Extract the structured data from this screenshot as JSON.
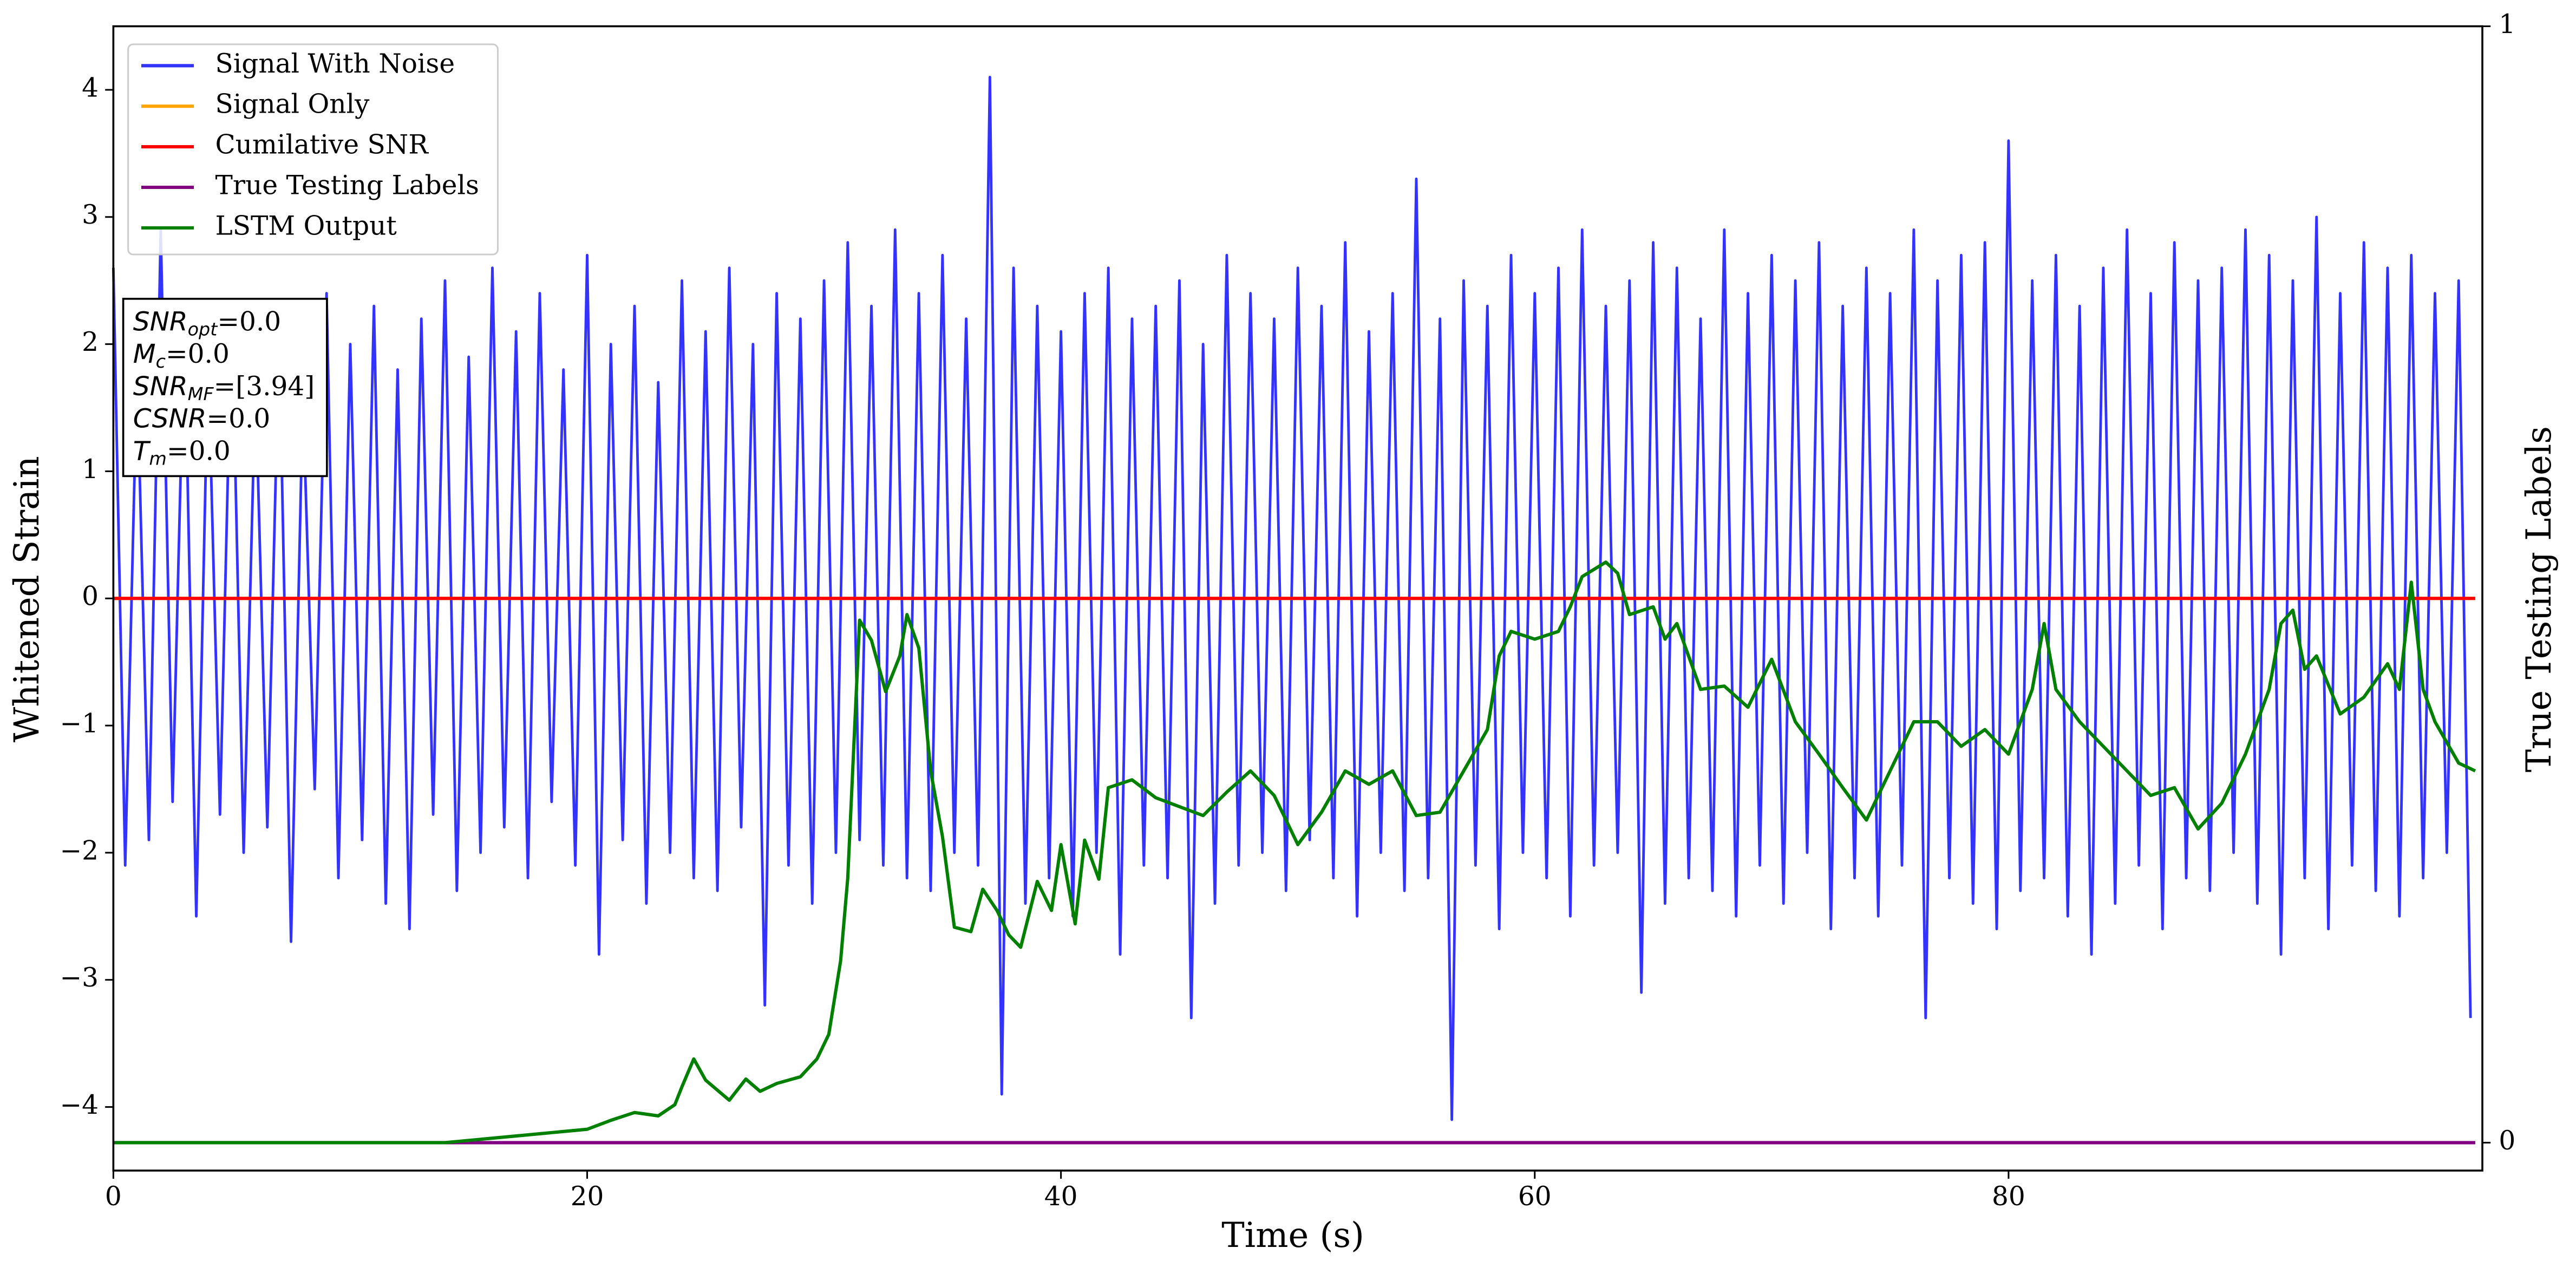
{
  "chart_data": {
    "type": "line",
    "xlabel": "Time (s)",
    "ylabel": "Whitened Strain",
    "y2label": "True Testing Labels",
    "xlim": [
      0,
      100
    ],
    "xticks": [
      0,
      20,
      40,
      60,
      80
    ],
    "ylim": [
      -4.5,
      4.5
    ],
    "yticks": [
      {
        "value": -4,
        "label": "−4"
      },
      {
        "value": -3,
        "label": "−3"
      },
      {
        "value": -2,
        "label": "−2"
      },
      {
        "value": -1,
        "label": "−1"
      },
      0,
      1,
      2,
      3,
      4
    ],
    "y2lim": [
      -0.025,
      1.0
    ],
    "y2ticks": [
      0,
      1
    ],
    "legend": "upper left",
    "series": [
      {
        "name": "Signal With Noise",
        "color": "#3333ff",
        "axis": "y",
        "x": [
          0,
          0.5,
          1,
          1.5,
          2,
          2.5,
          3,
          3.5,
          4,
          4.5,
          5,
          5.5,
          6,
          6.5,
          7,
          7.5,
          8,
          8.5,
          9,
          9.5,
          10,
          10.5,
          11,
          11.5,
          12,
          12.5,
          13,
          13.5,
          14,
          14.5,
          15,
          15.5,
          16,
          16.5,
          17,
          17.5,
          18,
          18.5,
          19,
          19.5,
          20,
          20.5,
          21,
          21.5,
          22,
          22.5,
          23,
          23.5,
          24,
          24.5,
          25,
          25.5,
          26,
          26.5,
          27,
          27.5,
          28,
          28.5,
          29,
          29.5,
          30,
          30.5,
          31,
          31.5,
          32,
          32.5,
          33,
          33.5,
          34,
          34.5,
          35,
          35.5,
          36,
          36.5,
          37,
          37.5,
          38,
          38.5,
          39,
          39.5,
          40,
          40.5,
          41,
          41.5,
          42,
          42.5,
          43,
          43.5,
          44,
          44.5,
          45,
          45.5,
          46,
          46.5,
          47,
          47.5,
          48,
          48.5,
          49,
          49.5,
          50,
          50.5,
          51,
          51.5,
          52,
          52.5,
          53,
          53.5,
          54,
          54.5,
          55,
          55.5,
          56,
          56.5,
          57,
          57.5,
          58,
          58.5,
          59,
          59.5,
          60,
          60.5,
          61,
          61.5,
          62,
          62.5,
          63,
          63.5,
          64,
          64.5,
          65,
          65.5,
          66,
          66.5,
          67,
          67.5,
          68,
          68.5,
          69,
          69.5,
          70,
          70.5,
          71,
          71.5,
          72,
          72.5,
          73,
          73.5,
          74,
          74.5,
          75,
          75.5,
          76,
          76.5,
          77,
          77.5,
          78,
          78.5,
          79,
          79.5,
          80,
          80.5,
          81,
          81.5,
          82,
          82.5,
          83,
          83.5,
          84,
          84.5,
          85,
          85.5,
          86,
          86.5,
          87,
          87.5,
          88,
          88.5,
          89,
          89.5,
          90,
          90.5,
          91,
          91.5,
          92,
          92.5,
          93,
          93.5,
          94,
          94.5,
          95,
          95.5,
          96,
          96.5,
          97,
          97.5,
          98,
          98.5,
          99,
          99.5
        ],
        "values": [
          2.6,
          -2.1,
          1.8,
          -1.9,
          2.9,
          -1.6,
          2.2,
          -2.5,
          1.9,
          -1.7,
          2.3,
          -2.0,
          1.7,
          -1.8,
          2.1,
          -2.7,
          1.6,
          -1.5,
          2.4,
          -2.2,
          2.0,
          -1.9,
          2.3,
          -2.4,
          1.8,
          -2.6,
          2.2,
          -1.7,
          2.5,
          -2.3,
          1.9,
          -2.0,
          2.6,
          -1.8,
          2.1,
          -2.2,
          2.4,
          -1.6,
          1.8,
          -2.1,
          2.7,
          -2.8,
          2.0,
          -1.9,
          2.3,
          -2.4,
          1.7,
          -2.0,
          2.5,
          -2.2,
          2.1,
          -2.3,
          2.6,
          -1.8,
          2.0,
          -3.2,
          2.4,
          -2.1,
          2.2,
          -2.4,
          2.5,
          -2.0,
          2.8,
          -1.9,
          2.3,
          -2.1,
          2.9,
          -2.2,
          2.4,
          -2.3,
          2.7,
          -2.0,
          2.2,
          -2.1,
          4.1,
          -3.9,
          2.6,
          -2.4,
          2.3,
          -2.2,
          2.1,
          -2.5,
          2.4,
          -2.0,
          2.6,
          -2.8,
          2.2,
          -2.1,
          2.3,
          -2.2,
          2.5,
          -3.3,
          2.0,
          -2.4,
          2.7,
          -2.1,
          2.4,
          -2.0,
          2.2,
          -2.3,
          2.6,
          -1.9,
          2.3,
          -2.2,
          2.8,
          -2.5,
          2.1,
          -2.0,
          2.4,
          -2.3,
          3.3,
          -2.2,
          2.2,
          -4.1,
          2.5,
          -2.1,
          2.3,
          -2.6,
          2.7,
          -2.0,
          2.4,
          -2.2,
          2.6,
          -2.5,
          2.9,
          -2.1,
          2.3,
          -2.0,
          2.5,
          -3.1,
          2.8,
          -2.4,
          2.6,
          -2.2,
          2.2,
          -2.3,
          2.9,
          -2.5,
          2.4,
          -2.1,
          2.7,
          -2.4,
          2.5,
          -2.0,
          2.8,
          -2.6,
          2.3,
          -2.2,
          2.6,
          -2.5,
          2.4,
          -2.1,
          2.9,
          -3.3,
          2.5,
          -2.2,
          2.7,
          -2.4,
          2.8,
          -2.6,
          3.6,
          -2.3,
          2.5,
          -2.2,
          2.7,
          -2.5,
          2.3,
          -2.8,
          2.6,
          -2.4,
          2.9,
          -2.1,
          2.4,
          -2.6,
          2.8,
          -2.2,
          2.5,
          -2.3,
          2.6,
          -2.0,
          2.9,
          -2.4,
          2.7,
          -2.8,
          2.5,
          -2.2,
          3.0,
          -2.6,
          2.4,
          -2.1,
          2.8,
          -2.3,
          2.6,
          -2.5,
          2.7,
          -2.2,
          2.4,
          -2.0,
          2.5,
          -3.3
        ]
      },
      {
        "name": "Signal Only",
        "color": "#ffa500",
        "axis": "y",
        "x": [
          0,
          99.7
        ],
        "values": [
          0,
          0
        ]
      },
      {
        "name": "Cumilative SNR",
        "color": "#ff0000",
        "axis": "y",
        "x": [
          0,
          99.7
        ],
        "values": [
          0,
          0
        ]
      },
      {
        "name": "True Testing Labels",
        "color": "#800080",
        "axis": "y2",
        "x": [
          0,
          99.7
        ],
        "values": [
          0,
          0
        ]
      },
      {
        "name": "LSTM Output",
        "color": "#008000",
        "axis": "y2",
        "x": [
          0,
          14,
          17,
          19,
          20,
          21,
          22,
          23,
          23.7,
          24,
          24.5,
          25,
          26,
          26.7,
          27.3,
          28,
          29,
          29.7,
          30.2,
          30.7,
          31,
          31.5,
          32,
          32.6,
          33.2,
          33.5,
          34,
          34.5,
          35,
          35.5,
          36.2,
          36.7,
          37.3,
          37.8,
          38.3,
          39,
          39.6,
          40,
          40.6,
          41,
          41.6,
          42,
          43,
          44,
          46,
          47,
          48,
          49,
          50,
          51,
          52,
          53,
          54,
          55,
          56,
          57,
          58,
          58.5,
          59,
          60,
          61,
          61.5,
          62,
          63,
          63.5,
          64,
          65,
          65.5,
          66,
          67,
          68,
          69,
          70,
          71,
          72,
          73,
          74,
          75,
          76,
          77,
          78,
          79,
          80,
          81,
          81.5,
          82,
          83,
          84,
          85,
          86,
          87,
          88,
          89,
          90,
          91,
          91.5,
          92,
          92.5,
          93,
          94,
          95,
          96,
          96.5,
          97,
          97.5,
          98,
          99,
          99.7
        ],
        "values": [
          0,
          0,
          0.006,
          0.01,
          0.012,
          0.02,
          0.027,
          0.024,
          0.034,
          0.05,
          0.075,
          0.056,
          0.038,
          0.057,
          0.046,
          0.053,
          0.059,
          0.075,
          0.097,
          0.163,
          0.237,
          0.468,
          0.45,
          0.404,
          0.436,
          0.473,
          0.443,
          0.333,
          0.274,
          0.193,
          0.189,
          0.227,
          0.208,
          0.186,
          0.175,
          0.234,
          0.208,
          0.267,
          0.196,
          0.271,
          0.236,
          0.318,
          0.325,
          0.309,
          0.293,
          0.314,
          0.333,
          0.311,
          0.267,
          0.296,
          0.333,
          0.321,
          0.333,
          0.293,
          0.296,
          0.333,
          0.37,
          0.436,
          0.458,
          0.451,
          0.458,
          0.48,
          0.507,
          0.52,
          0.51,
          0.473,
          0.48,
          0.451,
          0.465,
          0.406,
          0.409,
          0.39,
          0.433,
          0.377,
          0.348,
          0.318,
          0.289,
          0.333,
          0.377,
          0.377,
          0.355,
          0.37,
          0.348,
          0.406,
          0.465,
          0.406,
          0.377,
          0.355,
          0.333,
          0.311,
          0.318,
          0.281,
          0.304,
          0.348,
          0.406,
          0.465,
          0.477,
          0.424,
          0.436,
          0.384,
          0.399,
          0.429,
          0.406,
          0.502,
          0.406,
          0.377,
          0.34,
          0.333
        ]
      }
    ],
    "annotations": [
      {
        "name": "SNR",
        "sub": "opt",
        "text": "=0.0"
      },
      {
        "name": "M",
        "sub": "c",
        "text": "=0.0"
      },
      {
        "name": "SNR",
        "sub": "MF",
        "text": "=[3.94]"
      },
      {
        "name": "CSNR",
        "text": "=0.0"
      },
      {
        "name": "T",
        "sub": "m",
        "text": "=0.0"
      }
    ]
  }
}
